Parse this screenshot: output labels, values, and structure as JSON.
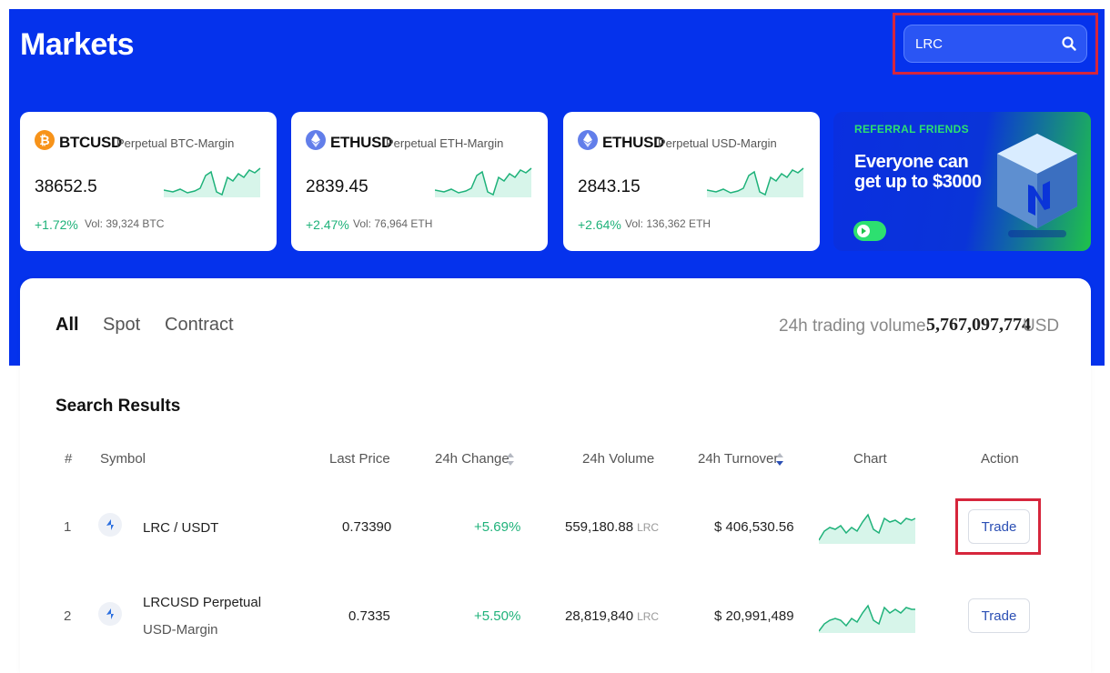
{
  "header": {
    "title": "Markets"
  },
  "search": {
    "value": "LRC",
    "placeholder": ""
  },
  "cards": [
    {
      "pair": "BTCUSD",
      "desc": "Perpetual BTC-Margin",
      "price": "38652.5",
      "change": "+1.72%",
      "volume": "Vol: 39,324 BTC",
      "icon": "bitcoin-icon",
      "icon_color": "#f7931a"
    },
    {
      "pair": "ETHUSD",
      "desc": "Perpetual ETH-Margin",
      "price": "2839.45",
      "change": "+2.47%",
      "volume": "Vol: 76,964 ETH",
      "icon": "ethereum-icon",
      "icon_color": "#627eea"
    },
    {
      "pair": "ETHUSD",
      "desc": "Perpetual USD-Margin",
      "price": "2843.15",
      "change": "+2.64%",
      "volume": "Vol: 136,362 ETH",
      "icon": "ethereum-icon",
      "icon_color": "#627eea"
    }
  ],
  "banner": {
    "tag": "REFERRAL FRIENDS",
    "headline": "Everyone can get up to $3000"
  },
  "tabs": [
    {
      "label": "All",
      "active": true
    },
    {
      "label": "Spot",
      "active": false
    },
    {
      "label": "Contract",
      "active": false
    }
  ],
  "trading_volume": {
    "label": "24h trading volume:",
    "value": "5,767,097,774",
    "unit": "USD"
  },
  "results": {
    "title": "Search Results",
    "columns": [
      "#",
      "Symbol",
      "Last Price",
      "24h Change",
      "24h Volume",
      "24h Turnover",
      "Chart",
      "Action"
    ],
    "rows": [
      {
        "index": "1",
        "symbol": "LRC / USDT",
        "symbol_sub": "",
        "last_price": "0.73390",
        "change": "+5.69%",
        "volume": "559,180.88",
        "volume_unit": "LRC",
        "turnover": "$ 406,530.56",
        "action": "Trade"
      },
      {
        "index": "2",
        "symbol": "LRCUSD Perpetual",
        "symbol_sub": "USD-Margin",
        "last_price": "0.7335",
        "change": "+5.50%",
        "volume": "28,819,840",
        "volume_unit": "LRC",
        "turnover": "$ 20,991,489",
        "action": "Trade"
      }
    ]
  },
  "colors": {
    "hero": "#0532ec",
    "positive": "#1fb27a",
    "highlight": "#d6263c",
    "accent_link": "#2b4fb4"
  }
}
